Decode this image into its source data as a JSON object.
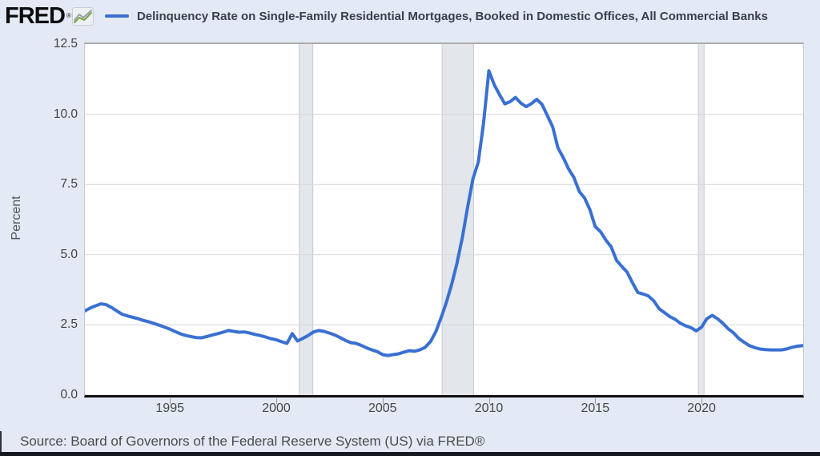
{
  "header": {
    "logo_text": "FRED",
    "registered_mark": "®",
    "chart_icon": "line-chart-icon",
    "series_title": "Delinquency Rate on Single-Family Residential Mortgages, Booked in Domestic Offices, All Commercial Banks"
  },
  "y_axis": {
    "label": "Percent"
  },
  "source_line": "Source: Board of Governors of the Federal Reserve System (US) via FRED®",
  "colors": {
    "page_background": "#e3eaf5",
    "plot_background": "#ffffff",
    "line": "#3a70d2",
    "gridline": "#d7d7d7",
    "recession_band": "#e3e7ec",
    "recession_band_edge": "#c7cbd1",
    "axis": "#101010",
    "title_text": "#36404e",
    "tick_text": "#424242"
  },
  "chart_data": {
    "type": "line",
    "title": "Delinquency Rate on Single-Family Residential Mortgages, Booked in Domestic Offices, All Commercial Banks",
    "xlabel": "",
    "ylabel": "Percent",
    "legend_position": "top",
    "grid": "horizontal",
    "xlim": [
      1991.0,
      2024.78
    ],
    "ylim": [
      0,
      12.5
    ],
    "yticks": [
      0.0,
      2.5,
      5.0,
      7.5,
      10.0,
      12.5
    ],
    "ytick_labels": [
      "0.0",
      "2.5",
      "5.0",
      "7.5",
      "10.0",
      "12.5"
    ],
    "xticks": [
      1995,
      2000,
      2005,
      2010,
      2015,
      2020
    ],
    "xtick_labels": [
      "1995",
      "2000",
      "2005",
      "2010",
      "2015",
      "2020"
    ],
    "line_color": "#3a70d2",
    "line_width": 4,
    "frequency": "quarterly",
    "x_start": 1991.0,
    "x_step": 0.25,
    "recession_bands": [
      [
        2001.08,
        2001.72
      ],
      [
        2007.8,
        2009.28
      ],
      [
        2019.85,
        2020.12
      ]
    ],
    "values": [
      3.0,
      3.1,
      3.18,
      3.25,
      3.22,
      3.12,
      3.0,
      2.88,
      2.82,
      2.77,
      2.72,
      2.66,
      2.61,
      2.55,
      2.49,
      2.42,
      2.35,
      2.26,
      2.18,
      2.12,
      2.08,
      2.05,
      2.04,
      2.09,
      2.14,
      2.19,
      2.24,
      2.3,
      2.27,
      2.24,
      2.25,
      2.21,
      2.16,
      2.12,
      2.07,
      2.01,
      1.97,
      1.9,
      1.84,
      2.19,
      1.93,
      2.02,
      2.12,
      2.25,
      2.3,
      2.27,
      2.21,
      2.14,
      2.05,
      1.95,
      1.87,
      1.84,
      1.77,
      1.68,
      1.61,
      1.55,
      1.44,
      1.41,
      1.44,
      1.47,
      1.53,
      1.58,
      1.56,
      1.61,
      1.7,
      1.9,
      2.25,
      2.75,
      3.3,
      3.95,
      4.7,
      5.6,
      6.7,
      7.7,
      8.3,
      9.7,
      11.55,
      11.05,
      10.7,
      10.37,
      10.45,
      10.6,
      10.4,
      10.27,
      10.38,
      10.53,
      10.35,
      9.95,
      9.55,
      8.8,
      8.45,
      8.05,
      7.75,
      7.25,
      7.02,
      6.6,
      6.0,
      5.82,
      5.52,
      5.28,
      4.8,
      4.58,
      4.38,
      4.0,
      3.66,
      3.6,
      3.53,
      3.36,
      3.08,
      2.94,
      2.8,
      2.7,
      2.56,
      2.47,
      2.4,
      2.29,
      2.42,
      2.72,
      2.84,
      2.72,
      2.56,
      2.36,
      2.22,
      2.02,
      1.88,
      1.76,
      1.69,
      1.64,
      1.62,
      1.61,
      1.61,
      1.61,
      1.64,
      1.7,
      1.74,
      1.76
    ]
  }
}
